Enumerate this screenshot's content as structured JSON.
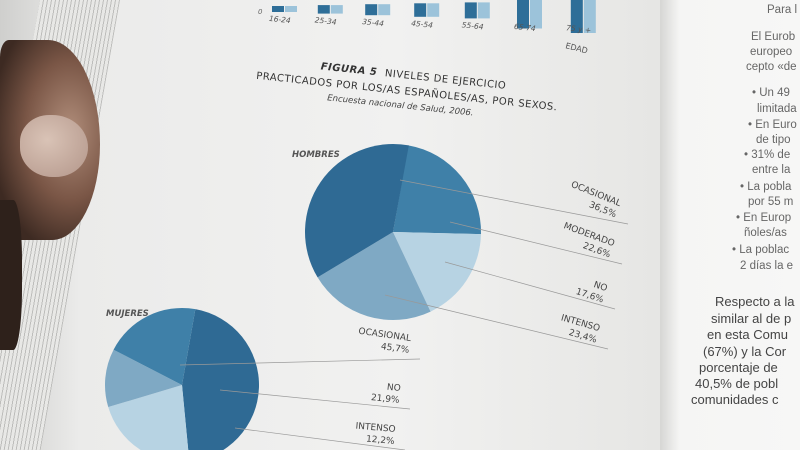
{
  "bar_chart": {
    "y_zero_label": "0",
    "categories": [
      "16-24",
      "25-34",
      "35-44",
      "45-54",
      "55-64",
      "65-74",
      "75 y +"
    ],
    "x_axis_label": "EDAD",
    "colors": [
      "#2e6e98",
      "#9cc3da"
    ]
  },
  "figure": {
    "number": "FIGURA 5",
    "title_line1": "NIVELES DE EJERCICIO",
    "title_line2": "PRACTICADOS POR LOS/AS ESPAÑOLES/AS, POR SEXOS.",
    "source": "Encuesta nacional de Salud, 2006."
  },
  "chart_data": [
    {
      "type": "pie",
      "title": "HOMBRES",
      "slices": [
        {
          "label": "OCASIONAL",
          "value": 36.5,
          "value_label": "36,5%",
          "color": "#2f6a94"
        },
        {
          "label": "MODERADO",
          "value": 22.6,
          "value_label": "22,6%",
          "color": "#3f80a8"
        },
        {
          "label": "NO",
          "value": 17.6,
          "value_label": "17,6%",
          "color": "#b7d3e3"
        },
        {
          "label": "INTENSO",
          "value": 23.4,
          "value_label": "23,4%",
          "color": "#7fa9c4"
        }
      ]
    },
    {
      "type": "pie",
      "title": "MUJERES",
      "slices": [
        {
          "label": "OCASIONAL",
          "value": 45.7,
          "value_label": "45,7%",
          "color": "#2f6a94"
        },
        {
          "label": "NO",
          "value": 21.9,
          "value_label": "21,9%",
          "color": "#b7d3e3"
        },
        {
          "label": "INTENSO",
          "value": 12.2,
          "value_label": "12,2%",
          "color": "#7fa9c4"
        }
      ],
      "remainder_color": "#3f80a8"
    }
  ],
  "right_page": {
    "lines": [
      "Para l",
      "El Eurob",
      "europeo",
      "cepto «de",
      "• Un 49",
      "limitada",
      "• En Euro",
      "de tipo",
      "• 31% de",
      "entre la",
      "• La pobla",
      "por 55 m",
      "• En Europ",
      "ñoles/as",
      "• La poblac",
      "2 días la e",
      "Respecto a la",
      "similar al de p",
      "en esta Comu",
      "(67%) y la Cor",
      "porcentaje de",
      "40,5% de pobl",
      "comunidades c"
    ]
  }
}
